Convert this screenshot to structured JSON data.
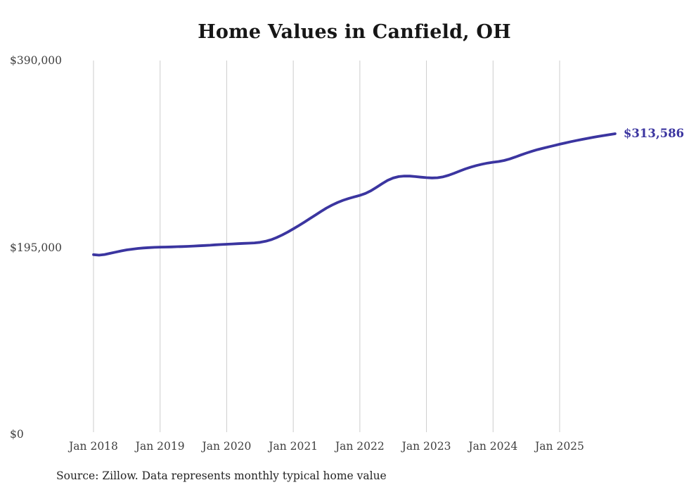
{
  "title": "Home Values in Canfield, OH",
  "source_note": "Source: Zillow. Data represents monthly typical home value",
  "final_value_label": "$313,586",
  "colors": {
    "line": "#3b35a0",
    "final_label": "#3b35a0",
    "gridline": "#cccccc",
    "axis_text": "#3f3f3f",
    "title_text": "#161616",
    "source_text": "#242424",
    "background": "#ffffff"
  },
  "chart_data": {
    "type": "line",
    "title": "Home Values in Canfield, OH",
    "xlabel": "",
    "ylabel": "",
    "grid": "vertical-only",
    "legend": "none",
    "ylim": [
      0,
      390000
    ],
    "y_ticks": [
      {
        "label": "$390,000",
        "value": 390000
      },
      {
        "label": "$195,000",
        "value": 195000
      },
      {
        "label": "$0",
        "value": 0
      }
    ],
    "x_ticks": [
      {
        "label": "Jan 2018",
        "month_index": 0
      },
      {
        "label": "Jan 2019",
        "month_index": 12
      },
      {
        "label": "Jan 2020",
        "month_index": 24
      },
      {
        "label": "Jan 2021",
        "month_index": 36
      },
      {
        "label": "Jan 2022",
        "month_index": 48
      },
      {
        "label": "Jan 2023",
        "month_index": 60
      },
      {
        "label": "Jan 2024",
        "month_index": 72
      },
      {
        "label": "Jan 2025",
        "month_index": 84
      }
    ],
    "series": [
      {
        "name": "Typical home value",
        "start_month": "2018-01",
        "end_month": "2025-11",
        "final_value": 313586,
        "monthly_values": [
          187400,
          186900,
          187600,
          188800,
          190100,
          191300,
          192400,
          193200,
          193900,
          194400,
          194800,
          195100,
          195300,
          195400,
          195500,
          195700,
          195900,
          196100,
          196400,
          196700,
          197000,
          197300,
          197700,
          198000,
          198300,
          198600,
          198900,
          199200,
          199400,
          199700,
          200300,
          201400,
          203000,
          205300,
          208000,
          211000,
          214300,
          217800,
          221400,
          225100,
          228800,
          232500,
          236100,
          239200,
          241900,
          244200,
          246100,
          247700,
          249300,
          251300,
          254100,
          257700,
          261500,
          264900,
          267400,
          268900,
          269500,
          269400,
          268900,
          268300,
          267800,
          267500,
          267700,
          268700,
          270300,
          272400,
          274700,
          276900,
          278800,
          280400,
          281800,
          283000,
          283900,
          284600,
          285700,
          287300,
          289300,
          291400,
          293400,
          295300,
          297000,
          298500,
          299900,
          301300,
          302700,
          304000,
          305300,
          306500,
          307700,
          308800,
          309900,
          310900,
          311800,
          312700,
          313586
        ]
      }
    ]
  }
}
